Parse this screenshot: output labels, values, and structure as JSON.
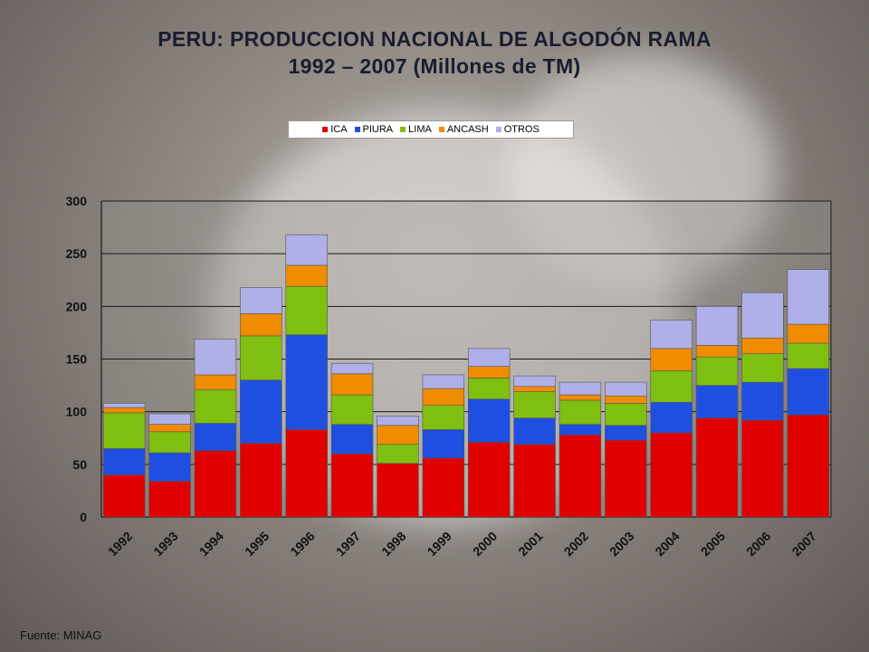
{
  "title_line1": "PERU: PRODUCCION NACIONAL DE ALGODÓN RAMA",
  "title_line2": "1992 – 2007 (Millones de TM)",
  "source": "Fuente: MINAG",
  "colors": {
    "ICA": "#e00000",
    "PIURA": "#1f4fe0",
    "LIMA": "#7fbf10",
    "ANCASH": "#f08c00",
    "OTROS": "#b0b0e8"
  },
  "chart_data": {
    "type": "bar",
    "stacked": true,
    "legend_position": "top",
    "grid": true,
    "ylim": [
      0,
      300
    ],
    "y_ticks": [
      "0",
      "50",
      "100",
      "150",
      "200",
      "250",
      "300"
    ],
    "categories": [
      "1992",
      "1993",
      "1994",
      "1995",
      "1996",
      "1997",
      "1998",
      "1999",
      "2000",
      "2001",
      "2002",
      "2003",
      "2004",
      "2005",
      "2006",
      "2007"
    ],
    "series": [
      {
        "name": "ICA",
        "values": [
          40,
          34,
          63,
          70,
          83,
          60,
          51,
          56,
          71,
          69,
          78,
          73,
          80,
          94,
          92,
          97
        ]
      },
      {
        "name": "PIURA",
        "values": [
          25,
          27,
          26,
          60,
          90,
          28,
          0,
          27,
          41,
          25,
          10,
          14,
          29,
          31,
          36,
          44
        ]
      },
      {
        "name": "LIMA",
        "values": [
          34,
          20,
          32,
          42,
          46,
          28,
          18,
          23,
          20,
          25,
          23,
          21,
          30,
          27,
          27,
          24
        ]
      },
      {
        "name": "ANCASH",
        "values": [
          5,
          7,
          14,
          21,
          20,
          20,
          18,
          16,
          11,
          5,
          5,
          7,
          21,
          11,
          15,
          18
        ]
      },
      {
        "name": "OTROS",
        "values": [
          4,
          10,
          34,
          25,
          29,
          10,
          9,
          13,
          17,
          10,
          12,
          13,
          27,
          37,
          43,
          52
        ]
      }
    ]
  }
}
